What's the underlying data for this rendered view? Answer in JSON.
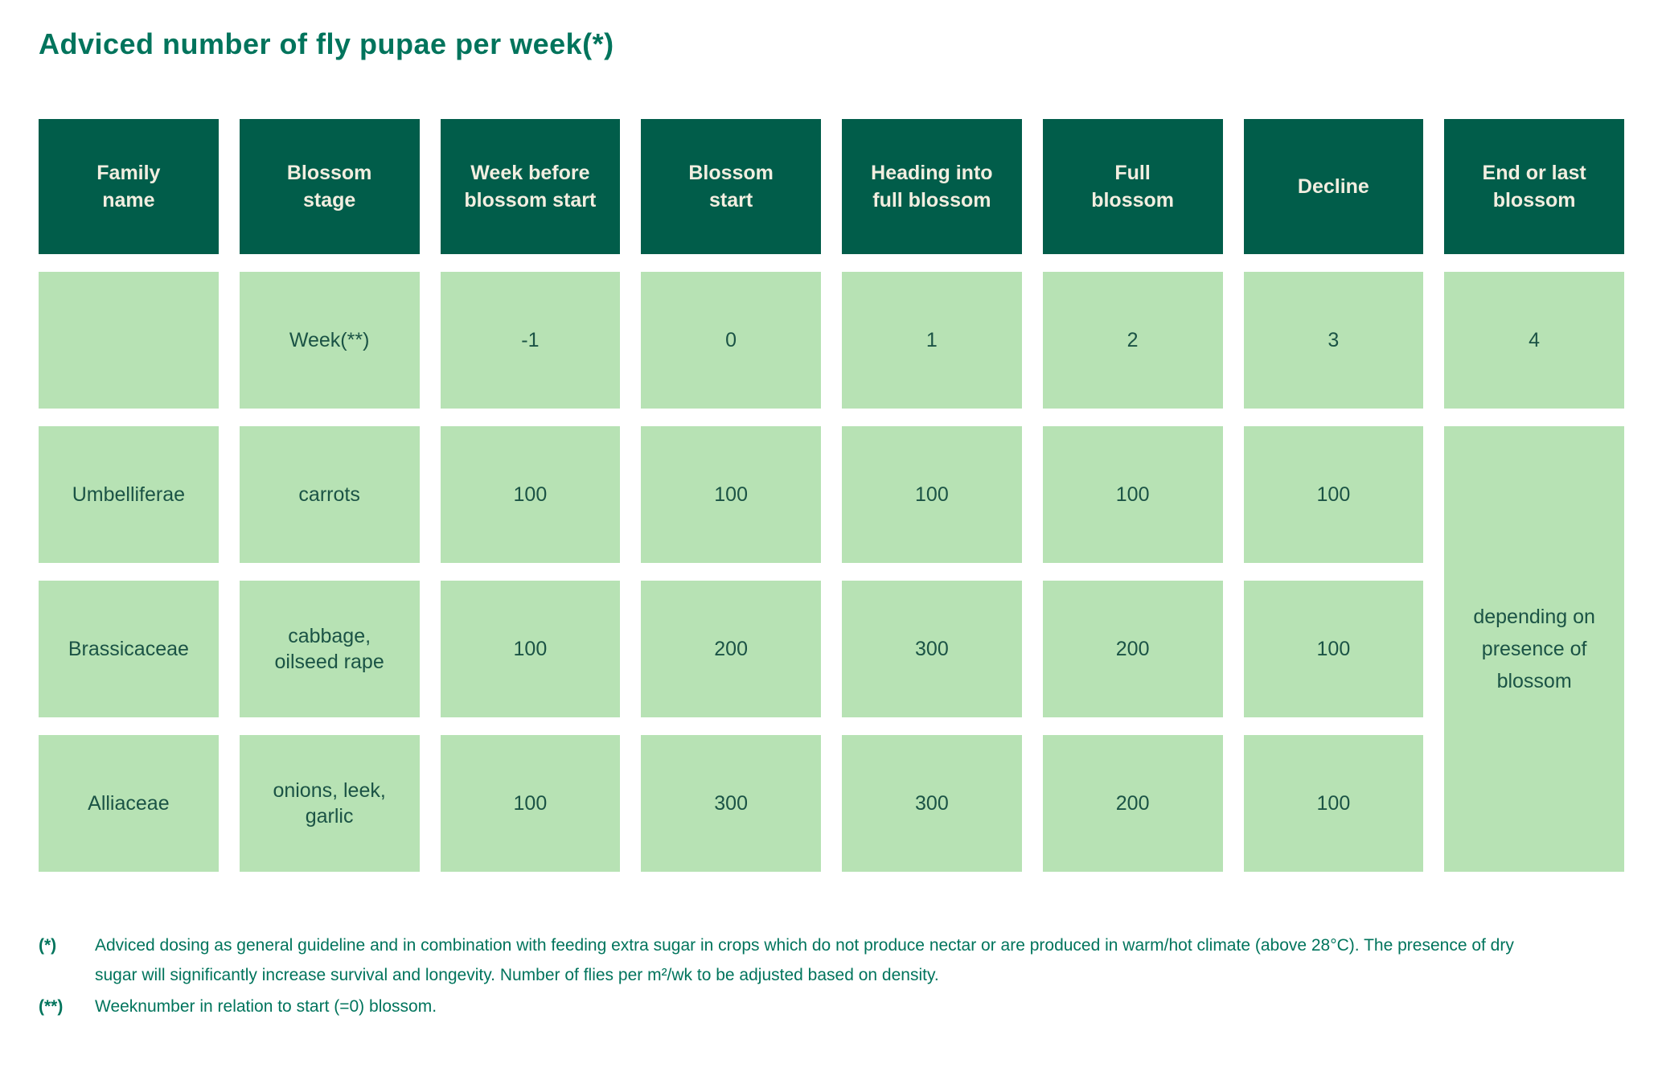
{
  "page": {
    "title": "Adviced number of fly pupae per week(*)"
  },
  "colors": {
    "header_bg": "#015d4a",
    "cell_bg": "#b7e2b4",
    "header_text": "#f2eee0",
    "cell_text": "#1b5345",
    "accent_text": "#00745c"
  },
  "table": {
    "header": [
      "Family\nname",
      "Blossom\nstage",
      "Week before\nblossom start",
      "Blossom\nstart",
      "Heading into\nfull blossom",
      "Full\nblossom",
      "Decline",
      "End or last\nblossom"
    ],
    "week_row": {
      "family": "",
      "label": "Week(**)",
      "values": [
        "-1",
        "0",
        "1",
        "2",
        "3",
        "4"
      ]
    },
    "rows": [
      {
        "family": "Umbelliferae",
        "stage": "carrots",
        "values": [
          "100",
          "100",
          "100",
          "100",
          "100"
        ]
      },
      {
        "family": "Brassicaceae",
        "stage": "cabbage,\noilseed rape",
        "values": [
          "100",
          "200",
          "300",
          "200",
          "100"
        ]
      },
      {
        "family": "Alliaceae",
        "stage": "onions, leek,\ngarlic",
        "values": [
          "100",
          "300",
          "300",
          "200",
          "100"
        ]
      }
    ],
    "last_column_note": "depending on\npresence of\nblossom"
  },
  "footnotes": [
    {
      "marker": "(*)",
      "text": "Adviced dosing as general guideline and in combination with feeding extra sugar in crops which do not produce nectar or are produced in warm/hot climate (above 28°C). The presence of dry sugar will significantly increase survival and longevity. Number of flies per m²/wk to be adjusted based on density."
    },
    {
      "marker": "(**)",
      "text": "Weeknumber in relation to start (=0) blossom."
    }
  ]
}
